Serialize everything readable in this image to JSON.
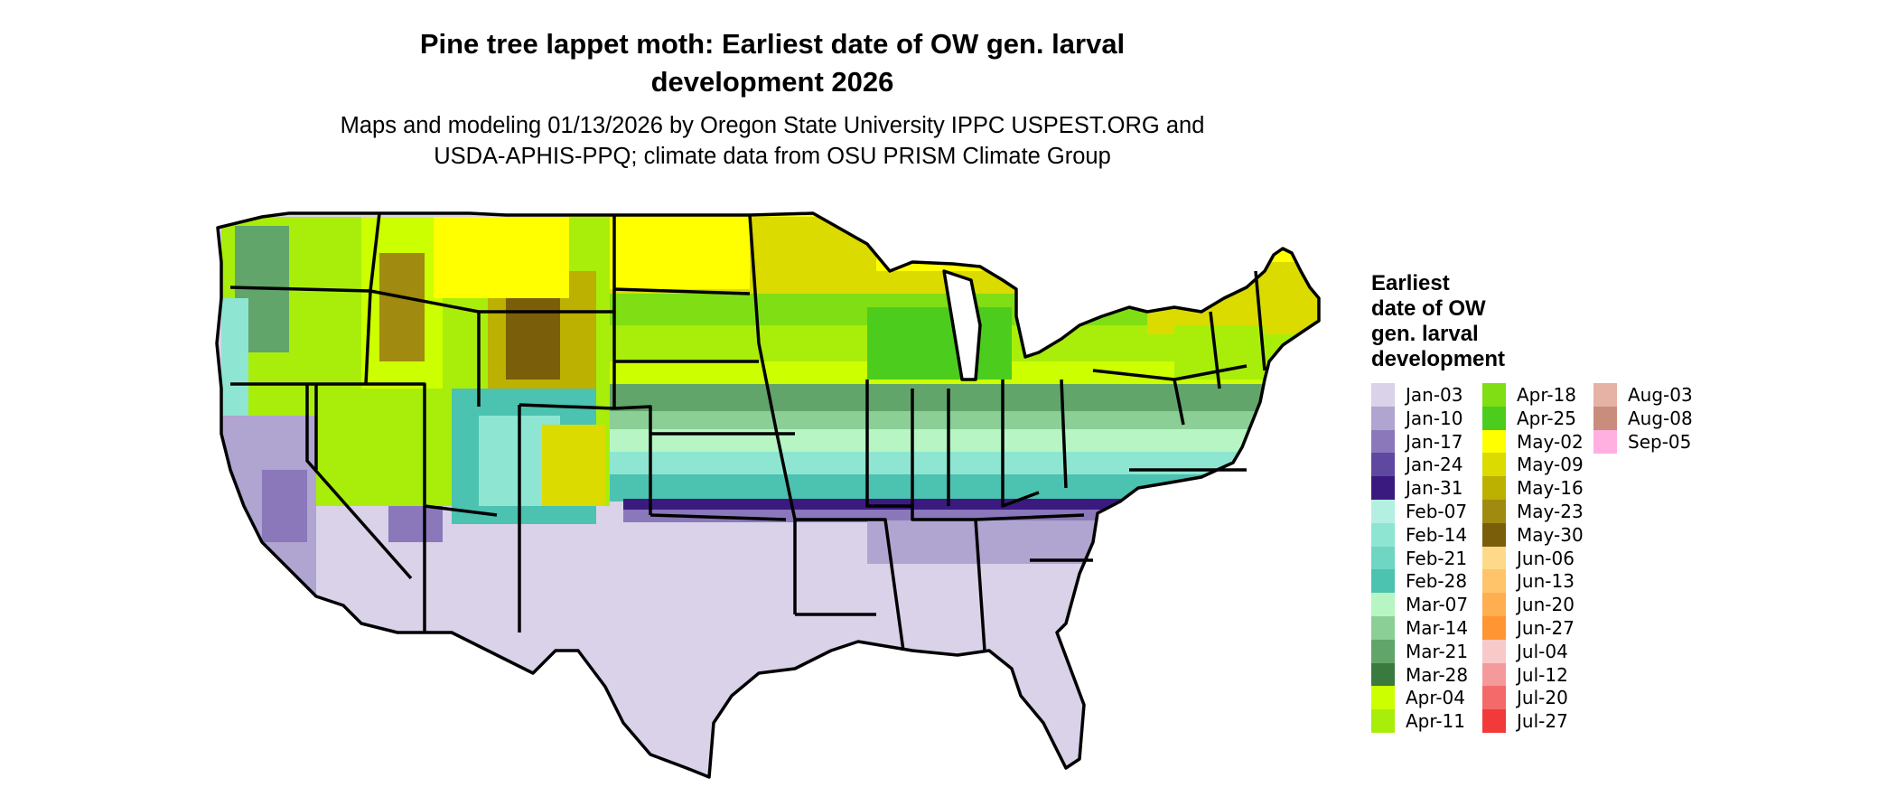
{
  "title_line1": "Pine tree lappet moth: Earliest date of OW gen. larval",
  "title_line2": "development 2026",
  "subtitle_line1": "Maps and modeling 01/13/2026 by Oregon State University IPPC USPEST.ORG and",
  "subtitle_line2": "USDA-APHIS-PPQ; climate data from OSU PRISM Climate Group",
  "legend": {
    "title_lines": [
      "Earliest",
      "date of OW",
      "gen. larval",
      "development"
    ],
    "items": [
      {
        "label": "Jan-03",
        "color": "#d9d2e9"
      },
      {
        "label": "Jan-10",
        "color": "#b0a4d0"
      },
      {
        "label": "Jan-17",
        "color": "#8a78bb"
      },
      {
        "label": "Jan-24",
        "color": "#5e48a0"
      },
      {
        "label": "Jan-31",
        "color": "#3b1a80"
      },
      {
        "label": "Feb-07",
        "color": "#b3f0e2"
      },
      {
        "label": "Feb-14",
        "color": "#8ee6d2"
      },
      {
        "label": "Feb-21",
        "color": "#6fd6c4"
      },
      {
        "label": "Feb-28",
        "color": "#4cc2b0"
      },
      {
        "label": "Mar-07",
        "color": "#b8f5c4"
      },
      {
        "label": "Mar-14",
        "color": "#8ccf96"
      },
      {
        "label": "Mar-21",
        "color": "#62a56a"
      },
      {
        "label": "Mar-28",
        "color": "#3b7a3e"
      },
      {
        "label": "Apr-04",
        "color": "#ccff00"
      },
      {
        "label": "Apr-11",
        "color": "#a8ee0a"
      },
      {
        "label": "Apr-18",
        "color": "#7fde14"
      },
      {
        "label": "Apr-25",
        "color": "#4ccd1e"
      },
      {
        "label": "May-02",
        "color": "#ffff00"
      },
      {
        "label": "May-09",
        "color": "#dbdb00"
      },
      {
        "label": "May-16",
        "color": "#bcb000"
      },
      {
        "label": "May-23",
        "color": "#a08a10"
      },
      {
        "label": "May-30",
        "color": "#7a5e0a"
      },
      {
        "label": "Jun-06",
        "color": "#ffd98a"
      },
      {
        "label": "Jun-13",
        "color": "#ffc46a"
      },
      {
        "label": "Jun-20",
        "color": "#ffae50"
      },
      {
        "label": "Jun-27",
        "color": "#ff9633"
      },
      {
        "label": "Jul-04",
        "color": "#f8c9c9"
      },
      {
        "label": "Jul-12",
        "color": "#f59a9a"
      },
      {
        "label": "Jul-20",
        "color": "#f46a6a"
      },
      {
        "label": "Jul-27",
        "color": "#f23a3a"
      },
      {
        "label": "Aug-03",
        "color": "#e6b2a6"
      },
      {
        "label": "Aug-08",
        "color": "#c98d7d"
      },
      {
        "label": "Sep-05",
        "color": "#ffb0e0"
      }
    ]
  }
}
